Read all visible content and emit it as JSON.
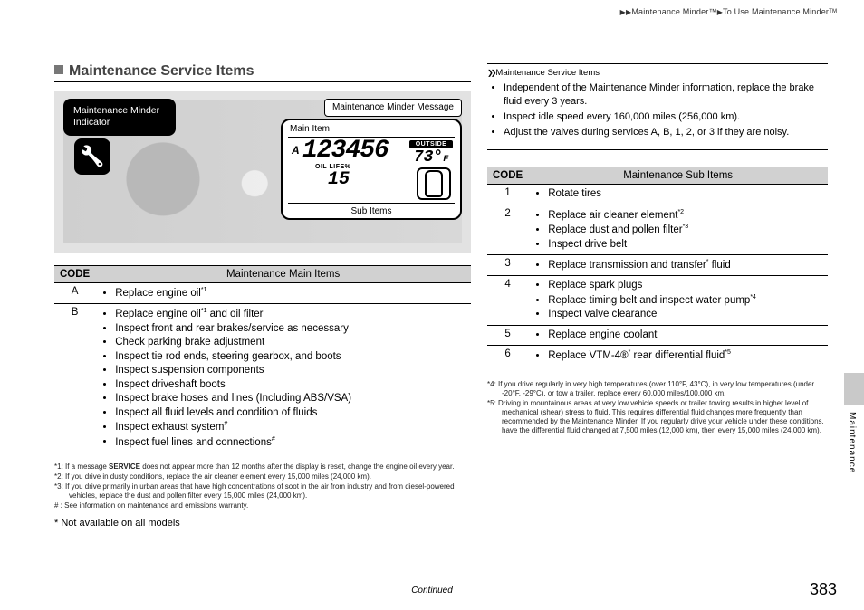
{
  "breadcrumb": {
    "part1": "Maintenance Minder™",
    "part2": "To Use Maintenance Minderᵀᴹ"
  },
  "section_title": "Maintenance Service Items",
  "illustration": {
    "indicator_label": "Maintenance Minder Indicator",
    "msg_label": "Maintenance Minder Message",
    "main_item_label": "Main Item",
    "sub_items_label": "Sub Items",
    "odometer": "123456",
    "letter": "A",
    "oil_label": "OIL LIFE%",
    "oil_value": "15",
    "outside_label": "OUTSIDE",
    "outside_temp": "73",
    "outside_unit": "F"
  },
  "main_table": {
    "header_code": "CODE",
    "header_desc": "Maintenance Main Items",
    "rows": [
      {
        "code": "A",
        "items": [
          "Replace engine oil<span class='sup'>*1</span>"
        ]
      },
      {
        "code": "B",
        "items": [
          "Replace engine oil<span class='sup'>*1</span> and oil filter",
          "Inspect front and rear brakes/service as necessary",
          "Check parking brake adjustment",
          "Inspect tie rod ends, steering gearbox, and boots",
          "Inspect suspension components",
          "Inspect driveshaft boots",
          "Inspect brake hoses and lines (Including ABS/VSA)",
          "Inspect all fluid levels and condition of fluids",
          "Inspect exhaust system<span class='sup'>#</span>",
          "Inspect fuel lines and connections<span class='sup'>#</span>"
        ]
      }
    ]
  },
  "sub_table": {
    "header_code": "CODE",
    "header_desc": "Maintenance Sub Items",
    "rows": [
      {
        "code": "1",
        "items": [
          "Rotate tires"
        ]
      },
      {
        "code": "2",
        "items": [
          "Replace air cleaner element<span class='sup'>*2</span>",
          "Replace dust and pollen filter<span class='sup'>*3</span>",
          "Inspect drive belt"
        ]
      },
      {
        "code": "3",
        "items": [
          "Replace transmission and transfer<span class='sup'>*</span> fluid"
        ]
      },
      {
        "code": "4",
        "items": [
          "Replace spark plugs",
          "Replace timing belt and inspect water pump<span class='sup'>*4</span>",
          "Inspect valve clearance"
        ]
      },
      {
        "code": "5",
        "items": [
          "Replace engine coolant"
        ]
      },
      {
        "code": "6",
        "items": [
          "Replace VTM-4®<span class='sup'>*</span> rear differential fluid<span class='sup'>*5</span>"
        ]
      }
    ]
  },
  "footnotes_left": [
    "*1: If a message <b>SERVICE</b> does not appear more than 12 months after the display is reset, change the engine oil every year.",
    "*2: If you drive in dusty conditions, replace the air cleaner element every 15,000 miles (24,000 km).",
    "*3: If you drive primarily in urban areas that have high concentrations of soot in the air from industry and from diesel-powered vehicles, replace the dust and pollen filter every 15,000 miles (24,000 km).",
    "# : See information on maintenance and emissions warranty."
  ],
  "footnotes_right": [
    "*4: If you drive regularly in very high temperatures (over 110°F, 43°C), in very low temperatures (under -20°F, -29°C), or tow a trailer, replace every 60,000 miles/100,000 km.",
    "*5: Driving in mountainous areas at very low vehicle speeds or trailer towing results in higher level of mechanical (shear) stress to fluid. This requires differential fluid changes more frequently than recommended by the Maintenance Minder. If you regularly drive your vehicle under these conditions, have the differential fluid changed at 7,500 miles (12,000 km), then every 15,000 miles (24,000 km)."
  ],
  "not_available": "* Not available on all models",
  "notebox": {
    "title": "Maintenance Service Items",
    "bullets": [
      "Independent of the Maintenance Minder information, replace the brake fluid every 3 years.",
      "Inspect idle speed every 160,000 miles (256,000 km).",
      "Adjust the valves during services A, B, 1, 2, or 3 if they are noisy."
    ]
  },
  "continued": "Continued",
  "page_number": "383",
  "side_label": "Maintenance"
}
